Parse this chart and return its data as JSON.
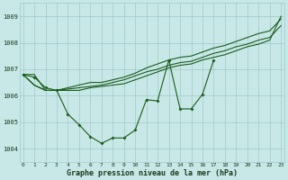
{
  "x": [
    0,
    1,
    2,
    3,
    4,
    5,
    6,
    7,
    8,
    9,
    10,
    11,
    12,
    13,
    14,
    15,
    16,
    17,
    18,
    19,
    20,
    21,
    22,
    23
  ],
  "line_main": [
    1006.8,
    1006.7,
    1006.3,
    1006.2,
    1005.3,
    1004.9,
    1004.45,
    1004.2,
    1004.4,
    1004.4,
    1004.7,
    1005.85,
    1005.8,
    1007.35,
    1005.5,
    1005.5,
    1006.05,
    1007.35,
    null,
    null,
    null,
    null,
    null,
    null
  ],
  "line_trend1": [
    1006.8,
    1006.4,
    1006.2,
    1006.2,
    1006.25,
    1006.3,
    1006.35,
    1006.4,
    1006.5,
    1006.6,
    1006.75,
    1006.9,
    1007.0,
    1007.15,
    1007.25,
    1007.3,
    1007.45,
    1007.6,
    1007.7,
    1007.85,
    1007.95,
    1008.1,
    1008.2,
    1008.65
  ],
  "line_trend2": [
    1006.8,
    1006.4,
    1006.2,
    1006.2,
    1006.3,
    1006.4,
    1006.5,
    1006.5,
    1006.6,
    1006.7,
    1006.85,
    1007.05,
    1007.2,
    1007.35,
    1007.45,
    1007.5,
    1007.65,
    1007.8,
    1007.9,
    1008.05,
    1008.2,
    1008.35,
    1008.45,
    1008.9
  ],
  "line_straight": [
    1006.8,
    1006.8,
    1006.2,
    1006.2,
    1006.2,
    1006.2,
    1006.3,
    1006.35,
    1006.4,
    1006.45,
    1006.6,
    1006.75,
    1006.9,
    1007.05,
    1007.15,
    1007.2,
    1007.35,
    1007.45,
    1007.55,
    1007.7,
    1007.85,
    1007.95,
    1008.1,
    1009.0
  ],
  "bg_color": "#c8e8e8",
  "line_color": "#1a5c1a",
  "grid_color": "#a0c8c8",
  "xlabel": "Graphe pression niveau de la mer (hPa)",
  "ylim": [
    1003.5,
    1009.5
  ],
  "xlim": [
    -0.3,
    23.3
  ],
  "yticks": [
    1004,
    1005,
    1006,
    1007,
    1008,
    1009
  ],
  "xticks": [
    0,
    1,
    2,
    3,
    4,
    5,
    6,
    7,
    8,
    9,
    10,
    11,
    12,
    13,
    14,
    15,
    16,
    17,
    18,
    19,
    20,
    21,
    22,
    23
  ]
}
